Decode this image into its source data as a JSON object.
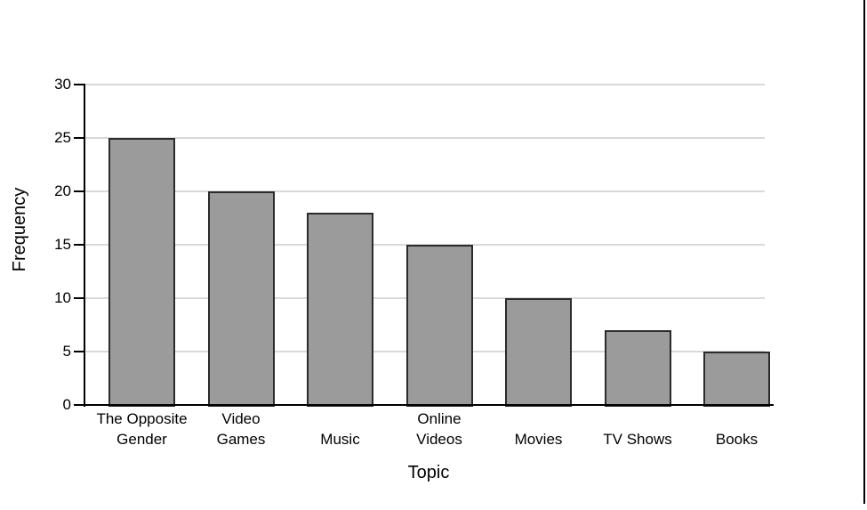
{
  "figure": {
    "background": "#ffffff",
    "page_edge_color": "#000000"
  },
  "chart_data": {
    "type": "bar",
    "title": "",
    "categories": [
      "The Opposite Gender",
      "Video Games",
      "Music",
      "Online Videos",
      "Movies",
      "TV Shows",
      "Books"
    ],
    "category_lines": [
      [
        "The Opposite",
        "Gender"
      ],
      [
        "Video",
        "Games"
      ],
      [
        "Music"
      ],
      [
        "Online",
        "Videos"
      ],
      [
        "Movies"
      ],
      [
        "TV Shows"
      ],
      [
        "Books"
      ]
    ],
    "values": [
      25,
      20,
      18,
      15,
      10,
      7,
      5
    ],
    "xlabel": "Topic",
    "ylabel": "Frequency",
    "ylim": [
      0,
      30
    ],
    "yticks": [
      0,
      5,
      10,
      15,
      20,
      25,
      30
    ],
    "grid": true,
    "legend": "none",
    "bar_fill": "#9b9b9b",
    "bar_border": "#2b2b2b",
    "gridline_color": "#d9d9d9",
    "axis_color": "#000000",
    "text_color": "#000000"
  }
}
